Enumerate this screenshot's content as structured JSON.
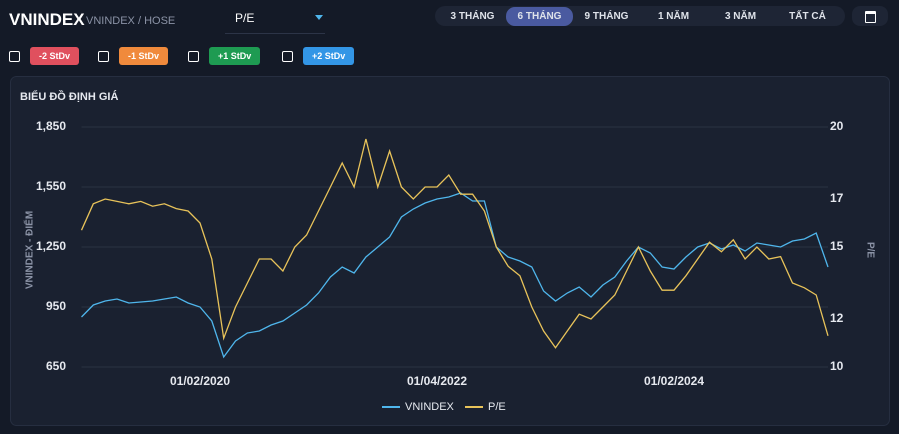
{
  "header": {
    "symbol": "VNINDEX",
    "exchange": "VNINDEX / HOSE",
    "metric": "P/E"
  },
  "periods": [
    {
      "label": "3 THÁNG",
      "active": false
    },
    {
      "label": "6 THÁNG",
      "active": true
    },
    {
      "label": "9 THÁNG",
      "active": false
    },
    {
      "label": "1 NĂM",
      "active": false
    },
    {
      "label": "3 NĂM",
      "active": false
    },
    {
      "label": "TẤT CẢ",
      "active": false
    }
  ],
  "bands": [
    {
      "label": "-2 StDv",
      "color": "#e0505e"
    },
    {
      "label": "-1 StDv",
      "color": "#f08a3c"
    },
    {
      "label": "+1 StDv",
      "color": "#1e9b52"
    },
    {
      "label": "+2 StDv",
      "color": "#3396e6"
    }
  ],
  "chart_data": {
    "type": "line",
    "title": "BIỂU ĐỒ ĐỊNH GIÁ",
    "y_label": "VNINDEX - ĐIỂM",
    "y2_label": "P/E",
    "grid": true,
    "categories": [
      null,
      null,
      null,
      null,
      null,
      null,
      null,
      null,
      null,
      null,
      "01/02/2020",
      null,
      null,
      null,
      null,
      null,
      null,
      null,
      null,
      null,
      null,
      null,
      null,
      null,
      null,
      null,
      null,
      null,
      null,
      null,
      "01/04/2022",
      null,
      null,
      null,
      null,
      null,
      null,
      null,
      null,
      null,
      null,
      null,
      null,
      null,
      null,
      null,
      null,
      null,
      null,
      null,
      "01/02/2024",
      null,
      null,
      null,
      null,
      null,
      null,
      null,
      null,
      null,
      null,
      null,
      null,
      null
    ],
    "ylim": [
      650,
      1850
    ],
    "yticks": [
      650,
      {
        "value": 950,
        "label": "950"
      },
      {
        "value": 1250,
        "label": "1,250"
      },
      {
        "value": 1550,
        "label": "1,550"
      },
      {
        "value": 1850,
        "label": "1,850"
      }
    ],
    "y2lim": [
      10,
      20
    ],
    "y2ticks": [
      10,
      12,
      15,
      17,
      20
    ],
    "series": [
      {
        "name": "VNINDEX",
        "color": "#4fb6ec",
        "values": [
          900,
          960,
          980,
          990,
          970,
          975,
          980,
          990,
          1000,
          970,
          950,
          880,
          700,
          780,
          820,
          830,
          860,
          880,
          920,
          960,
          1020,
          1100,
          1150,
          1120,
          1200,
          1250,
          1300,
          1400,
          1440,
          1470,
          1490,
          1500,
          1520,
          1480,
          1480,
          1250,
          1200,
          1180,
          1150,
          1030,
          980,
          1020,
          1050,
          1000,
          1060,
          1100,
          1180,
          1250,
          1220,
          1150,
          1140,
          1200,
          1250,
          1270,
          1240,
          1260,
          1230,
          1270,
          1260,
          1250,
          1280,
          1290,
          1320,
          1150
        ]
      },
      {
        "name": "P/E",
        "color": "#e8c35a",
        "axis": "y2",
        "values": [
          15.7,
          16.8,
          17,
          16.9,
          16.8,
          16.9,
          16.7,
          16.8,
          16.6,
          16.5,
          16,
          14.5,
          11.2,
          12.5,
          13.5,
          14.5,
          14.5,
          14,
          15,
          15.5,
          16.5,
          17.5,
          18.5,
          17.5,
          19.5,
          17.5,
          19,
          17.5,
          17,
          17.5,
          17.5,
          18,
          17.2,
          17.2,
          16.5,
          15,
          14.2,
          13.8,
          12.5,
          11.5,
          10.8,
          11.5,
          12.2,
          12,
          12.5,
          13,
          14,
          15,
          14,
          13.2,
          13.2,
          13.8,
          14.5,
          15.2,
          14.8,
          15.3,
          14.5,
          15,
          14.5,
          14.6,
          13.5,
          13.3,
          13,
          11.3
        ]
      }
    ]
  }
}
